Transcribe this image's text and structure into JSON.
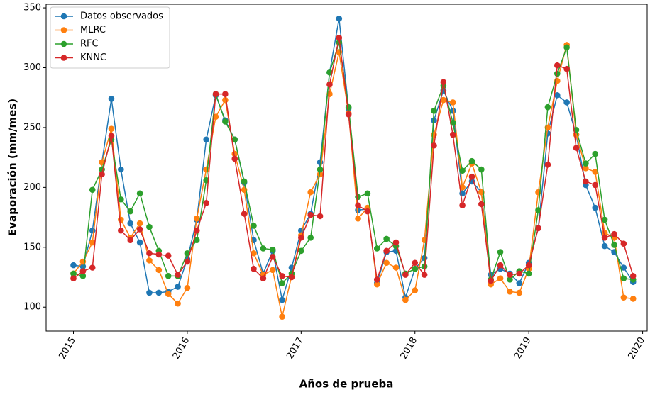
{
  "chart_data": {
    "type": "line",
    "xlabel": "Años de prueba",
    "ylabel": "Evaporación (mm/mes)",
    "x": [
      "2015-01",
      "2015-02",
      "2015-03",
      "2015-04",
      "2015-05",
      "2015-06",
      "2015-07",
      "2015-08",
      "2015-09",
      "2015-10",
      "2015-11",
      "2015-12",
      "2016-01",
      "2016-02",
      "2016-03",
      "2016-04",
      "2016-05",
      "2016-06",
      "2016-07",
      "2016-08",
      "2016-09",
      "2016-10",
      "2016-11",
      "2016-12",
      "2017-01",
      "2017-02",
      "2017-03",
      "2017-04",
      "2017-05",
      "2017-06",
      "2017-07",
      "2017-08",
      "2017-09",
      "2017-10",
      "2017-11",
      "2017-12",
      "2018-01",
      "2018-02",
      "2018-03",
      "2018-04",
      "2018-05",
      "2018-06",
      "2018-07",
      "2018-08",
      "2018-09",
      "2018-10",
      "2018-11",
      "2018-12",
      "2019-01",
      "2019-02",
      "2019-03",
      "2019-04",
      "2019-05",
      "2019-06",
      "2019-07",
      "2019-08",
      "2019-09",
      "2019-10",
      "2019-11",
      "2019-12"
    ],
    "series": [
      {
        "name": "Datos observados",
        "color": "#1f77b4",
        "values": [
          135,
          134,
          164,
          221,
          274,
          215,
          170,
          154,
          112,
          112,
          113,
          117,
          140,
          173,
          240,
          277,
          256,
          240,
          204,
          156,
          128,
          147,
          106,
          133,
          164,
          178,
          221,
          296,
          341,
          266,
          181,
          182,
          120,
          146,
          147,
          108,
          132,
          141,
          256,
          281,
          264,
          195,
          205,
          196,
          127,
          132,
          128,
          120,
          137,
          166,
          245,
          277,
          271,
          244,
          202,
          183,
          151,
          146,
          133,
          121
        ]
      },
      {
        "name": "MLRC",
        "color": "#ff7f0e",
        "values": [
          128,
          138,
          154,
          221,
          249,
          173,
          158,
          170,
          139,
          131,
          111,
          103,
          116,
          174,
          215,
          259,
          273,
          228,
          198,
          145,
          127,
          131,
          92,
          126,
          160,
          196,
          211,
          278,
          313,
          262,
          174,
          183,
          119,
          137,
          133,
          106,
          114,
          156,
          244,
          273,
          271,
          200,
          220,
          196,
          119,
          124,
          113,
          112,
          132,
          196,
          250,
          289,
          319,
          244,
          216,
          213,
          162,
          158,
          108,
          107
        ]
      },
      {
        "name": "RFC",
        "color": "#2ca02c",
        "values": [
          128,
          126,
          198,
          215,
          240,
          190,
          180,
          195,
          167,
          147,
          126,
          126,
          145,
          156,
          206,
          278,
          255,
          240,
          205,
          168,
          149,
          148,
          120,
          128,
          147,
          158,
          215,
          296,
          321,
          267,
          192,
          195,
          149,
          157,
          151,
          128,
          132,
          134,
          264,
          285,
          254,
          214,
          222,
          215,
          123,
          146,
          123,
          130,
          128,
          181,
          267,
          295,
          317,
          248,
          220,
          228,
          173,
          152,
          124,
          123
        ]
      },
      {
        "name": "KNNC",
        "color": "#d62728",
        "values": [
          124,
          130,
          133,
          211,
          243,
          164,
          156,
          165,
          145,
          144,
          143,
          127,
          138,
          164,
          187,
          278,
          278,
          224,
          178,
          132,
          124,
          142,
          126,
          125,
          158,
          177,
          176,
          286,
          325,
          261,
          185,
          180,
          123,
          147,
          154,
          127,
          137,
          127,
          235,
          288,
          244,
          185,
          209,
          186,
          122,
          135,
          127,
          128,
          135,
          166,
          219,
          302,
          299,
          233,
          205,
          202,
          158,
          161,
          153,
          126
        ]
      }
    ],
    "xlim": [
      2014.76,
      2020.04
    ],
    "xticks": [
      2015,
      2016,
      2017,
      2018,
      2019,
      2020
    ],
    "ylim": [
      80,
      353
    ],
    "yticks": [
      100,
      150,
      200,
      250,
      300,
      350
    ],
    "legend": "upper left",
    "grid": false
  }
}
